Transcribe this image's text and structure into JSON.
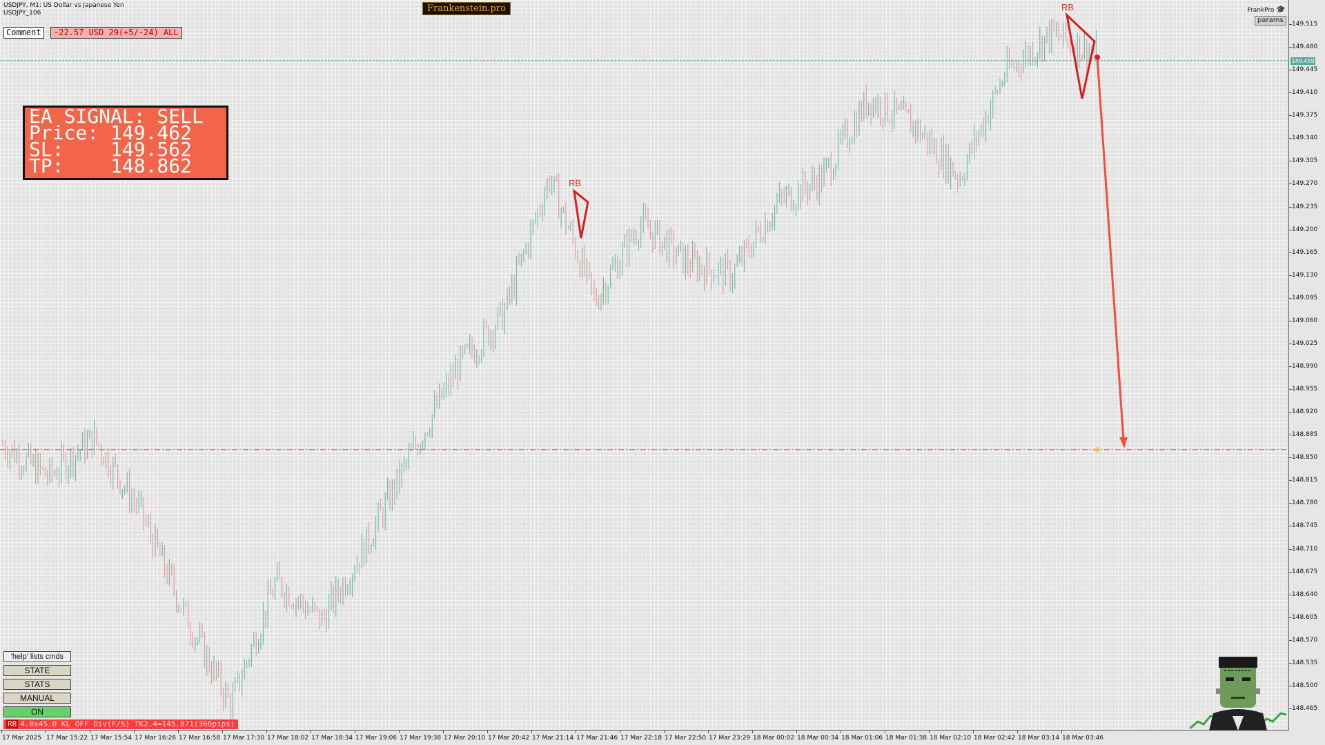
{
  "header": {
    "symbol_line": "USDJPY, M1:  US Dollar vs Japanese Yen",
    "account_line": "USDJPY_106",
    "brand": "Frankenstein.pro",
    "frankpro": "FrankPro",
    "params": "params"
  },
  "comment": {
    "label": "Comment",
    "pnl": "-22.57 USD 29(+5/-24) ALL"
  },
  "signal": {
    "title": "EA SIGNAL: SELL",
    "price": "Price: 149.462",
    "sl": "SL:    149.562",
    "tp": "TP:    148.862"
  },
  "price_scale": {
    "current": "149.459",
    "ticks": [
      "149.515",
      "149.480",
      "149.445",
      "149.410",
      "149.375",
      "149.340",
      "149.305",
      "149.270",
      "149.235",
      "149.200",
      "149.165",
      "149.130",
      "149.095",
      "149.060",
      "149.025",
      "148.990",
      "148.955",
      "148.920",
      "148.885",
      "148.850",
      "148.815",
      "148.780",
      "148.745",
      "148.710",
      "148.675",
      "148.640",
      "148.605",
      "148.570",
      "148.535",
      "148.500",
      "148.465"
    ]
  },
  "time_axis": {
    "labels": [
      "17 Mar 2025",
      "17 Mar 15:22",
      "17 Mar 15:54",
      "17 Mar 16:26",
      "17 Mar 16:58",
      "17 Mar 17:30",
      "17 Mar 18:02",
      "17 Mar 18:34",
      "17 Mar 19:06",
      "17 Mar 19:38",
      "17 Mar 20:10",
      "17 Mar 20:42",
      "17 Mar 21:14",
      "17 Mar 21:46",
      "17 Mar 22:18",
      "17 Mar 22:50",
      "17 Mar 23:29",
      "18 Mar 00:02",
      "18 Mar 00:34",
      "18 Mar 01:06",
      "18 Mar 01:38",
      "18 Mar 02:10",
      "18 Mar 02:42",
      "18 Mar 03:14",
      "18 Mar 03:46"
    ]
  },
  "annotations": {
    "pattern_label_1": "RB",
    "pattern_label_2": "RB"
  },
  "commands": {
    "help": "'help' lists cmds",
    "state": "STATE",
    "stats": "STATS",
    "manual": "MANUAL",
    "on": "ON"
  },
  "status": {
    "tag": "RB",
    "text": "4.0x45.0 KL_OFF Div(F/S) TK2.4=145.871(366pips)"
  },
  "colors": {
    "bull": "#5fb4a6",
    "bear": "#e58f8f",
    "signal_box": "#f3654a",
    "arrow": "#f0503c",
    "tp_line": "#e04848",
    "bid_line": "#3aa08a",
    "on_button": "#66d16a"
  },
  "chart_data": {
    "type": "line",
    "title": "USDJPY, M1",
    "xlabel": "",
    "ylabel": "",
    "x": [
      "17 Mar 2025",
      "17 Mar 15:22",
      "17 Mar 15:54",
      "17 Mar 16:26",
      "17 Mar 16:58",
      "17 Mar 17:30",
      "17 Mar 18:02",
      "17 Mar 18:34",
      "17 Mar 19:06",
      "17 Mar 19:38",
      "17 Mar 20:10",
      "17 Mar 20:42",
      "17 Mar 21:14",
      "17 Mar 21:46",
      "17 Mar 22:18",
      "17 Mar 22:50",
      "17 Mar 23:29",
      "18 Mar 00:02",
      "18 Mar 00:34",
      "18 Mar 01:06",
      "18 Mar 01:38",
      "18 Mar 02:10",
      "18 Mar 02:42",
      "18 Mar 03:14",
      "18 Mar 03:46"
    ],
    "series": [
      {
        "values": [
          148.87,
          148.82,
          148.88,
          148.77,
          148.61,
          148.47,
          148.66,
          148.6,
          148.72,
          148.86,
          148.99,
          149.07,
          149.28,
          149.09,
          149.21,
          149.15,
          149.13,
          149.24,
          149.28,
          149.4,
          149.36,
          149.28,
          149.44,
          149.5,
          149.47
        ]
      }
    ],
    "ylim": [
      148.445,
      149.535
    ],
    "current_price": 149.459,
    "tp_level": 148.862,
    "grid": true
  }
}
